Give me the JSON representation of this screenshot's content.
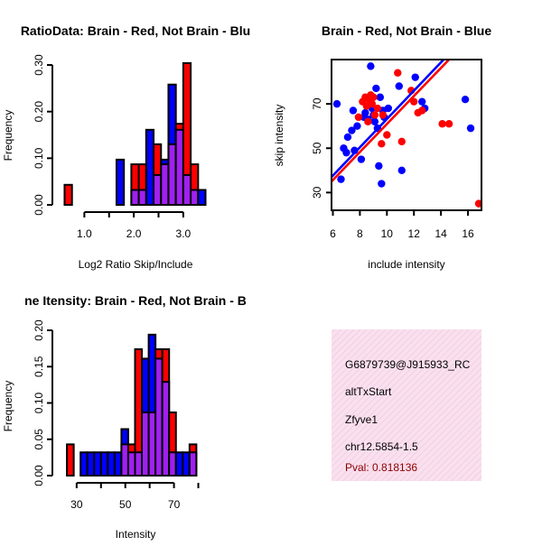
{
  "chart_data": [
    {
      "type": "bar",
      "subtype": "histogram-overlay",
      "title": "RatioData: Brain - Red, Not Brain - Blu",
      "xlabel": "Log2 Ratio Skip/Include",
      "ylabel": "Frequency",
      "xlim": [
        0.5,
        3.55
      ],
      "ylim": [
        0,
        0.3
      ],
      "xticks": [
        "1.0",
        "2.0",
        "3.0"
      ],
      "yticks": [
        "0.00",
        "0.10",
        "0.20",
        "0.30"
      ],
      "bin_start": 0.6,
      "bin_width": 0.15,
      "series": [
        {
          "name": "Brain",
          "color": "#ff0000",
          "values": [
            0.043,
            0,
            0,
            0,
            0,
            0,
            0,
            0,
            0,
            0.087,
            0.087,
            0,
            0.13,
            0.087,
            0.13,
            0.174,
            0.304,
            0.087,
            0,
            0
          ]
        },
        {
          "name": "Not Brain",
          "color": "#0000ff",
          "values": [
            0,
            0,
            0,
            0,
            0,
            0,
            0,
            0.097,
            0,
            0.032,
            0.032,
            0.161,
            0.064,
            0.097,
            0.258,
            0.161,
            0.064,
            0.032,
            0.032,
            0
          ]
        }
      ],
      "overlap_color": "#a020f0"
    },
    {
      "type": "scatter",
      "title": "Brain - Red, Not Brain - Blue",
      "xlabel": "include intensity",
      "ylabel": "skip intensity",
      "xlim": [
        5.9,
        17.0
      ],
      "ylim": [
        22,
        90
      ],
      "xticks": [
        "6",
        "8",
        "10",
        "12",
        "14",
        "16"
      ],
      "yticks": [
        "30",
        "50",
        "70"
      ],
      "series": [
        {
          "name": "Brain",
          "color": "#ff0000",
          "x": [
            7.9,
            8.2,
            8.4,
            8.5,
            8.6,
            8.7,
            8.8,
            8.9,
            9.0,
            9.1,
            9.3,
            9.6,
            9.7,
            10.0,
            10.8,
            11.1,
            11.8,
            12.0,
            12.3,
            12.6,
            14.1,
            14.6,
            16.8
          ],
          "y": [
            64,
            71,
            73,
            69,
            62,
            72,
            74,
            70,
            73,
            65,
            68,
            52,
            65,
            56,
            84,
            53,
            76,
            71,
            66,
            67,
            61,
            61,
            25
          ]
        },
        {
          "name": "Not Brain",
          "color": "#0000ff",
          "x": [
            6.3,
            6.6,
            6.8,
            7.0,
            7.1,
            7.4,
            7.5,
            7.6,
            7.8,
            8.1,
            8.3,
            8.4,
            8.6,
            8.8,
            8.9,
            9.0,
            9.1,
            9.2,
            9.3,
            9.4,
            9.5,
            9.6,
            9.7,
            9.8,
            10.1,
            10.9,
            11.1,
            12.1,
            12.6,
            12.8,
            15.8,
            16.2
          ],
          "y": [
            70,
            36,
            50,
            48,
            55,
            58,
            67,
            49,
            60,
            45,
            64,
            66,
            63,
            87,
            68,
            65,
            62,
            77,
            59,
            42,
            73,
            34,
            67,
            64,
            68,
            78,
            40,
            82,
            71,
            68,
            72,
            59
          ]
        }
      ],
      "fit_lines": [
        {
          "name": "Brain fit",
          "color": "#ff0000",
          "x": [
            5.9,
            14.6
          ],
          "y": [
            35,
            90
          ]
        },
        {
          "name": "Not Brain fit",
          "color": "#0000ff",
          "x": [
            5.9,
            14.2
          ],
          "y": [
            37,
            90
          ]
        }
      ]
    },
    {
      "type": "bar",
      "subtype": "histogram-overlay",
      "title": "ne Itensity: Brain - Red, Not Brain - B",
      "xlabel": "Intensity",
      "ylabel": "Frequency",
      "xlim": [
        23,
        85
      ],
      "ylim": [
        0,
        0.2
      ],
      "xticks": [
        "30",
        "50",
        "70"
      ],
      "yticks": [
        "0.00",
        "0.05",
        "0.10",
        "0.15",
        "0.20"
      ],
      "bin_start": 26,
      "bin_width": 2.8,
      "series": [
        {
          "name": "Brain",
          "color": "#ff0000",
          "values": [
            0.043,
            0,
            0,
            0,
            0,
            0,
            0,
            0,
            0.043,
            0.043,
            0.174,
            0.087,
            0.087,
            0.174,
            0.174,
            0.087,
            0,
            0,
            0.043,
            0
          ]
        },
        {
          "name": "Not Brain",
          "color": "#0000ff",
          "values": [
            0,
            0,
            0.032,
            0.032,
            0.032,
            0.032,
            0.032,
            0.032,
            0.064,
            0.032,
            0.032,
            0.161,
            0.194,
            0.161,
            0.129,
            0.032,
            0.032,
            0.032,
            0.032,
            0
          ]
        }
      ],
      "overlap_color": "#a020f0"
    }
  ],
  "info_box": {
    "probe_id": "G6879739@J915933_RC",
    "event_type": "altTxStart",
    "gene": "Zfyve1",
    "location": "chr12.5854-1.5",
    "pval": "Pval: 0.818136",
    "pval_color": "#8b0000",
    "background": "#f8dcec"
  }
}
